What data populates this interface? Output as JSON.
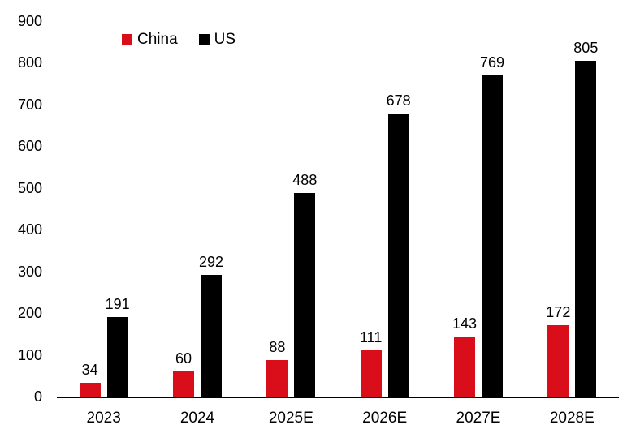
{
  "chart_data": {
    "type": "bar",
    "title": "",
    "xlabel": "",
    "ylabel": "",
    "categories": [
      "2023",
      "2024",
      "2025E",
      "2026E",
      "2027E",
      "2028E"
    ],
    "series": [
      {
        "name": "China",
        "color": "#da0e1a",
        "values": [
          34,
          60,
          88,
          111,
          143,
          172
        ]
      },
      {
        "name": "US",
        "color": "#000000",
        "values": [
          191,
          292,
          488,
          678,
          769,
          805
        ]
      }
    ],
    "ylim": [
      0,
      900
    ],
    "yticks": [
      0,
      100,
      200,
      300,
      400,
      500,
      600,
      700,
      800,
      900
    ],
    "grid": false,
    "data_labels": true,
    "legend_position": "top-left",
    "axis_color": "#000000"
  }
}
